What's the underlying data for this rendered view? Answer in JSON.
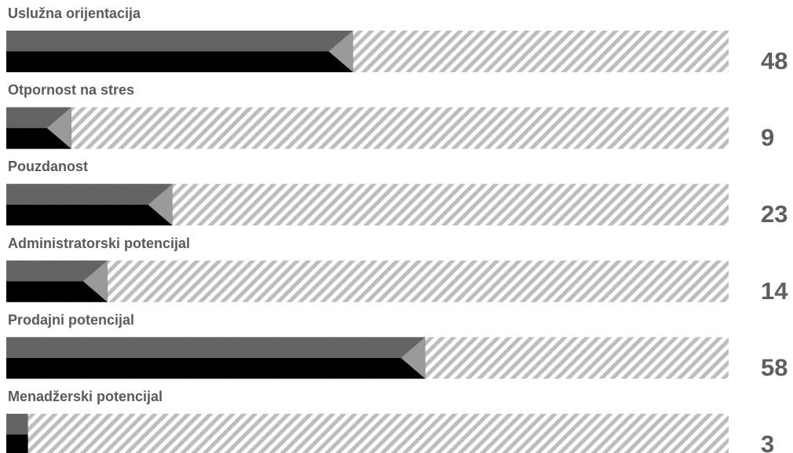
{
  "chart_data": {
    "type": "bar",
    "orientation": "horizontal",
    "xlim": [
      0,
      100
    ],
    "categories": [
      "Uslužna orijentacija",
      "Otpornost na stres",
      "Pouzdanost",
      "Administratorski potencijal",
      "Prodajni potencijal",
      "Menadžerski potencijal"
    ],
    "values": [
      48,
      9,
      23,
      14,
      58,
      3
    ],
    "value_labels": [
      "48",
      "9",
      "23",
      "14",
      "58",
      "3"
    ],
    "colors": {
      "fill_top": "#646464",
      "fill_bottom": "#000000",
      "marker": "#9a9a9a",
      "stripe": "#bdbdbd",
      "label_text": "#5a5a5a",
      "value_text": "#5f5f5f"
    }
  }
}
